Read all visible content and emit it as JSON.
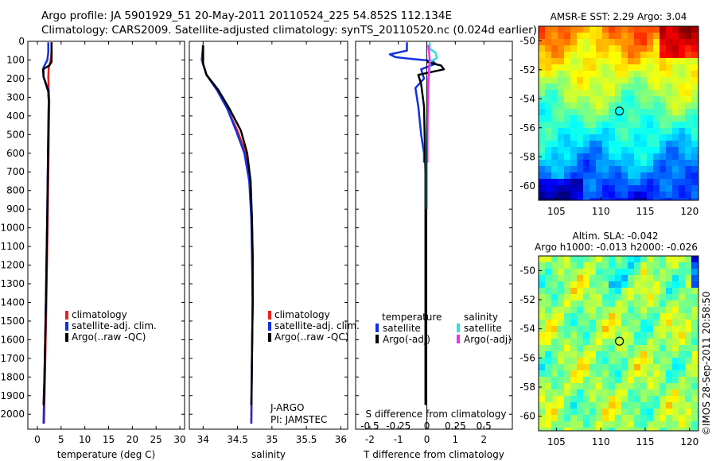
{
  "header": {
    "line1": "Argo profile: JA 5901929_51 20-May-2011 20110524_225 54.852S 112.134E",
    "line2": "Climatology: CARS2009. Satellite-adjusted climatology: synTS_20110520.nc (0.024d earlier)"
  },
  "colors": {
    "climatology": "#e82020",
    "satellite": "#1030e0",
    "argo": "#000000",
    "sal_sat": "#30e0e0",
    "sal_argo": "#f030f0"
  },
  "chart_data": [
    {
      "type": "line",
      "name": "temperature-profile",
      "xlabel": "temperature (deg C)",
      "ylabel": "",
      "xlim": [
        -2,
        31
      ],
      "ylim": [
        2080,
        0
      ],
      "xticks": [
        0,
        5,
        10,
        15,
        20,
        25,
        30
      ],
      "yticks": [
        0,
        100,
        200,
        300,
        400,
        500,
        600,
        700,
        800,
        900,
        1000,
        1100,
        1200,
        1300,
        1400,
        1500,
        1600,
        1700,
        1800,
        1900,
        2000
      ],
      "legend": [
        "climatology",
        "satellite-adj. clim.",
        "Argo(..raw -QC)"
      ],
      "series": [
        {
          "name": "climatology",
          "points": [
            [
              3.0,
              5
            ],
            [
              3.0,
              60
            ],
            [
              2.8,
              100
            ],
            [
              2.4,
              140
            ],
            [
              2.3,
              190
            ],
            [
              2.4,
              260
            ],
            [
              2.5,
              320
            ],
            [
              2.4,
              500
            ],
            [
              2.2,
              900
            ],
            [
              1.9,
              1400
            ],
            [
              1.6,
              1800
            ],
            [
              1.4,
              2050
            ]
          ]
        },
        {
          "name": "satellite-adj. clim.",
          "points": [
            [
              2.3,
              5
            ],
            [
              2.3,
              60
            ],
            [
              2.1,
              100
            ],
            [
              1.3,
              140
            ],
            [
              1.3,
              190
            ],
            [
              2.3,
              260
            ],
            [
              2.4,
              320
            ],
            [
              2.3,
              500
            ],
            [
              2.1,
              900
            ],
            [
              1.8,
              1400
            ],
            [
              1.5,
              1800
            ],
            [
              1.3,
              2050
            ]
          ]
        },
        {
          "name": "Argo(..raw -QC)",
          "points": [
            [
              3.0,
              5
            ],
            [
              3.0,
              110
            ],
            [
              2.5,
              130
            ],
            [
              1.2,
              150
            ],
            [
              1.3,
              190
            ],
            [
              2.3,
              270
            ],
            [
              2.4,
              320
            ],
            [
              2.3,
              500
            ],
            [
              2.1,
              900
            ],
            [
              1.8,
              1400
            ],
            [
              1.5,
              1800
            ],
            [
              1.3,
              1950
            ]
          ]
        }
      ]
    },
    {
      "type": "line",
      "name": "salinity-profile",
      "xlabel": "salinity",
      "xlim": [
        33.8,
        36.1
      ],
      "ylim": [
        2080,
        0
      ],
      "xticks": [
        34,
        34.5,
        35,
        35.5,
        36
      ],
      "xticklabels": [
        "34",
        "34.5",
        "35",
        "35.5",
        "36"
      ],
      "legend": [
        "climatology",
        "satellite-adj. clim.",
        "Argo(..raw -QC)"
      ],
      "annotation_line1": "J-ARGO",
      "annotation_line2": "PI: JAMSTEC",
      "series": [
        {
          "name": "climatology",
          "points": [
            [
              34.0,
              20
            ],
            [
              34.0,
              120
            ],
            [
              34.05,
              180
            ],
            [
              34.2,
              260
            ],
            [
              34.35,
              360
            ],
            [
              34.5,
              480
            ],
            [
              34.62,
              600
            ],
            [
              34.68,
              750
            ],
            [
              34.71,
              950
            ],
            [
              34.72,
              1150
            ],
            [
              34.72,
              1400
            ],
            [
              34.71,
              1700
            ],
            [
              34.7,
              2050
            ]
          ]
        },
        {
          "name": "satellite-adj. clim.",
          "points": [
            [
              34.0,
              20
            ],
            [
              33.98,
              100
            ],
            [
              34.05,
              180
            ],
            [
              34.2,
              260
            ],
            [
              34.35,
              360
            ],
            [
              34.48,
              480
            ],
            [
              34.6,
              600
            ],
            [
              34.67,
              750
            ],
            [
              34.7,
              950
            ],
            [
              34.71,
              1150
            ],
            [
              34.72,
              1400
            ],
            [
              34.71,
              1700
            ],
            [
              34.7,
              2050
            ]
          ]
        },
        {
          "name": "Argo(..raw -QC)",
          "points": [
            [
              34.0,
              20
            ],
            [
              34.0,
              120
            ],
            [
              34.05,
              180
            ],
            [
              34.22,
              260
            ],
            [
              34.38,
              360
            ],
            [
              34.55,
              480
            ],
            [
              34.64,
              600
            ],
            [
              34.69,
              750
            ],
            [
              34.71,
              950
            ],
            [
              34.72,
              1150
            ],
            [
              34.72,
              1400
            ],
            [
              34.71,
              1700
            ],
            [
              34.7,
              1950
            ]
          ]
        }
      ]
    },
    {
      "type": "line",
      "name": "difference-profile",
      "xlabel": "T difference from climatology",
      "xlim": [
        -2.5,
        3.0
      ],
      "ylim": [
        2080,
        0
      ],
      "xticks": [
        -2,
        -1,
        0,
        1,
        2
      ],
      "s_label": "S difference from climatology",
      "s_ticks": [
        "-0.5",
        "-0.25",
        "0",
        "0.25",
        "0.5"
      ],
      "legend": {
        "temperature": "temperature",
        "salinity": "salinity",
        "t_sat": "satellite",
        "t_argo": "Argo(-adj)",
        "s_sat": "satellite",
        "s_argo": "Argo(-adj)"
      },
      "series": [
        {
          "name": "T satellite",
          "points": [
            [
              -0.7,
              5
            ],
            [
              -0.7,
              50
            ],
            [
              -1.3,
              70
            ],
            [
              -1.1,
              85
            ],
            [
              -0.5,
              95
            ],
            [
              0.2,
              105
            ],
            [
              0.3,
              120
            ],
            [
              -0.2,
              150
            ],
            [
              -0.1,
              200
            ],
            [
              -0.4,
              250
            ],
            [
              -0.3,
              350
            ],
            [
              -0.2,
              500
            ],
            [
              -0.1,
              600
            ],
            [
              -0.1,
              650
            ]
          ]
        },
        {
          "name": "T Argo(-adj)",
          "points": [
            [
              0.0,
              110
            ],
            [
              0.5,
              130
            ],
            [
              0.6,
              150
            ],
            [
              -0.3,
              180
            ],
            [
              -0.2,
              230
            ],
            [
              -0.1,
              350
            ],
            [
              -0.05,
              700
            ],
            [
              -0.05,
              1000
            ],
            [
              -0.05,
              1500
            ],
            [
              -0.05,
              1950
            ]
          ]
        },
        {
          "name": "S satellite",
          "points": [
            [
              0.1,
              5
            ],
            [
              0.1,
              40
            ],
            [
              0.3,
              60
            ],
            [
              0.35,
              90
            ],
            [
              0.1,
              110
            ],
            [
              0.1,
              150
            ],
            [
              0.05,
              200
            ],
            [
              0.05,
              300
            ],
            [
              0.0,
              500
            ],
            [
              0.0,
              800
            ],
            [
              0.0,
              900
            ]
          ]
        },
        {
          "name": "S Argo(-adj)",
          "points": [
            [
              0.05,
              20
            ],
            [
              0.08,
              60
            ],
            [
              0.1,
              100
            ],
            [
              0.08,
              150
            ],
            [
              0.05,
              250
            ],
            [
              0.03,
              400
            ],
            [
              0.02,
              550
            ],
            [
              0.02,
              650
            ]
          ]
        }
      ]
    },
    {
      "type": "heatmap",
      "name": "sst-map",
      "title": "AMSR-E SST: 2.29 Argo: 3.04",
      "xlim": [
        103,
        121
      ],
      "ylim": [
        -61,
        -49
      ],
      "xticks": [
        "105",
        "110",
        "115",
        "120"
      ],
      "yticks": [
        "-50",
        "-52",
        "-54",
        "-56",
        "-58",
        "-60"
      ],
      "marker": [
        112.1,
        -54.85
      ]
    },
    {
      "type": "heatmap",
      "name": "sla-map",
      "title1": "Altim. SLA: -0.042",
      "title2": "Argo h1000: -0.013 h2000: -0.026",
      "xlim": [
        103,
        121
      ],
      "ylim": [
        -61,
        -49
      ],
      "xticks": [
        "105",
        "110",
        "115",
        "120"
      ],
      "yticks": [
        "-50",
        "-52",
        "-54",
        "-56",
        "-58",
        "-60"
      ],
      "marker": [
        112.1,
        -54.85
      ]
    }
  ],
  "footer": {
    "stamp": "©IMOS 28-Sep-2011 20:58:50"
  }
}
